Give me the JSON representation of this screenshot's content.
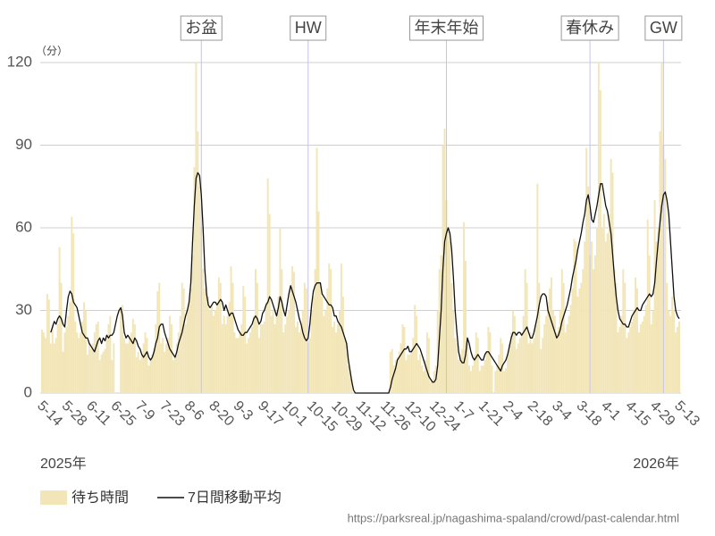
{
  "chart_data": {
    "type": "bar-line",
    "y_unit": "（分）",
    "year_labels": [
      "2025年",
      "2026年"
    ],
    "source": "https://parksreal.jp/nagashima-spaland/crowd/past-calendar.html",
    "annotations": [
      "お盆",
      "HW",
      "年末年始",
      "春休み",
      "GW"
    ],
    "ylim": [
      0,
      120
    ],
    "yticks": [
      0,
      30,
      60,
      90,
      120
    ],
    "grid": true,
    "categories": [
      "5-14",
      null,
      null,
      null,
      null,
      null,
      null,
      null,
      null,
      null,
      null,
      null,
      null,
      null,
      "5-28",
      null,
      null,
      null,
      null,
      null,
      null,
      null,
      null,
      null,
      null,
      null,
      null,
      null,
      "6-11",
      null,
      null,
      null,
      null,
      null,
      null,
      null,
      null,
      null,
      null,
      null,
      null,
      null,
      "6-25",
      null,
      null,
      null,
      null,
      null,
      null,
      null,
      null,
      null,
      null,
      null,
      null,
      null,
      "7-9",
      null,
      null,
      null,
      null,
      null,
      null,
      null,
      null,
      null,
      null,
      null,
      null,
      null,
      "7-23",
      null,
      null,
      null,
      null,
      null,
      null,
      null,
      null,
      null,
      null,
      null,
      null,
      null,
      "8-6",
      null,
      null,
      null,
      null,
      null,
      null,
      null,
      null,
      null,
      null,
      null,
      null,
      null,
      "8-20",
      null,
      null,
      null,
      null,
      null,
      null,
      null,
      null,
      null,
      null,
      null,
      null,
      null,
      "9-3",
      null,
      null,
      null,
      null,
      null,
      null,
      null,
      null,
      null,
      null,
      null,
      null,
      null,
      "9-17",
      null,
      null,
      null,
      null,
      null,
      null,
      null,
      null,
      null,
      null,
      null,
      null,
      null,
      "10-1",
      null,
      null,
      null,
      null,
      null,
      null,
      null,
      null,
      null,
      null,
      null,
      null,
      null,
      "10-15",
      null,
      null,
      null,
      null,
      null,
      null,
      null,
      null,
      null,
      null,
      null,
      null,
      null,
      "10-29",
      null,
      null,
      null,
      null,
      null,
      null,
      null,
      null,
      null,
      null,
      null,
      null,
      null,
      "11-12",
      null,
      null,
      null,
      null,
      null,
      null,
      null,
      null,
      null,
      null,
      null,
      null,
      null,
      "11-26",
      null,
      null,
      null,
      null,
      null,
      null,
      null,
      null,
      null,
      null,
      null,
      null,
      null,
      "12-10",
      null,
      null,
      null,
      null,
      null,
      null,
      null,
      null,
      null,
      null,
      null,
      null,
      null,
      "12-24",
      null,
      null,
      null,
      null,
      null,
      null,
      null,
      null,
      null,
      null,
      null,
      null,
      null,
      "1-7",
      null,
      null,
      null,
      null,
      null,
      null,
      null,
      null,
      null,
      null,
      null,
      null,
      null,
      "1-21",
      null,
      null,
      null,
      null,
      null,
      null,
      null,
      null,
      null,
      null,
      null,
      null,
      null,
      "2-4",
      null,
      null,
      null,
      null,
      null,
      null,
      null,
      null,
      null,
      null,
      null,
      null,
      null,
      "2-18",
      null,
      null,
      null,
      null,
      null,
      null,
      null,
      null,
      null,
      null,
      null,
      null,
      null,
      "3-4",
      null,
      null,
      null,
      null,
      null,
      null,
      null,
      null,
      null,
      null,
      null,
      null,
      null,
      "3-18",
      null,
      null,
      null,
      null,
      null,
      null,
      null,
      null,
      null,
      null,
      null,
      null,
      null,
      "4-1",
      null,
      null,
      null,
      null,
      null,
      null,
      null,
      null,
      null,
      null,
      null,
      null,
      null,
      "4-15",
      null,
      null,
      null,
      null,
      null,
      null,
      null,
      null,
      null,
      null,
      null,
      null,
      null,
      "4-29",
      null,
      null,
      null,
      null,
      null,
      null,
      null,
      null,
      null,
      null,
      null,
      null,
      null,
      "5-13"
    ],
    "series": [
      {
        "name": "待ち時間",
        "color": "#f2e6b8",
        "values": [
          23,
          22,
          20,
          36,
          34,
          18,
          25,
          18,
          20,
          25,
          53,
          40,
          15,
          22,
          24,
          28,
          33,
          64,
          58,
          26,
          22,
          20,
          22,
          26,
          33,
          30,
          14,
          18,
          16,
          18,
          22,
          25,
          26,
          12,
          14,
          15,
          16,
          20,
          25,
          28,
          12,
          18,
          0,
          0,
          0,
          30,
          32,
          20,
          18,
          18,
          20,
          22,
          27,
          25,
          13,
          15,
          12,
          14,
          18,
          22,
          20,
          10,
          12,
          14,
          16,
          25,
          37,
          40,
          18,
          20,
          15,
          18,
          20,
          28,
          25,
          12,
          14,
          18,
          22,
          28,
          40,
          38,
          25,
          30,
          33,
          38,
          50,
          82,
          120,
          95,
          75,
          60,
          45,
          38,
          40,
          35,
          30,
          32,
          28,
          30,
          33,
          42,
          40,
          25,
          28,
          25,
          28,
          33,
          46,
          40,
          22,
          20,
          20,
          22,
          25,
          39,
          35,
          18,
          20,
          22,
          24,
          28,
          45,
          40,
          20,
          25,
          25,
          26,
          33,
          78,
          65,
          28,
          30,
          25,
          28,
          35,
          60,
          45,
          22,
          25,
          28,
          30,
          38,
          46,
          44,
          24,
          26,
          22,
          24,
          30,
          40,
          38,
          18,
          20,
          30,
          35,
          45,
          89,
          66,
          40,
          35,
          28,
          30,
          38,
          47,
          45,
          24,
          26,
          22,
          25,
          30,
          47,
          35,
          20,
          18,
          10,
          8,
          5,
          0,
          0,
          0,
          0,
          0,
          0,
          0,
          0,
          0,
          0,
          0,
          0,
          0,
          0,
          0,
          0,
          0,
          0,
          0,
          0,
          0,
          15,
          16,
          10,
          12,
          13,
          15,
          18,
          25,
          24,
          12,
          14,
          14,
          16,
          20,
          32,
          28,
          12,
          14,
          10,
          8,
          12,
          22,
          20,
          4,
          5,
          8,
          10,
          30,
          45,
          50,
          90,
          96,
          70,
          60,
          55,
          40,
          30,
          20,
          18,
          12,
          14,
          16,
          62,
          48,
          20,
          10,
          8,
          10,
          14,
          22,
          20,
          8,
          10,
          10,
          12,
          15,
          24,
          22,
          10,
          0,
          8,
          10,
          14,
          20,
          18,
          8,
          9,
          14,
          18,
          22,
          30,
          28,
          16,
          18,
          20,
          22,
          28,
          45,
          40,
          18,
          22,
          18,
          20,
          25,
          76,
          40,
          16,
          20,
          25,
          28,
          33,
          38,
          42,
          30,
          28,
          22,
          24,
          30,
          45,
          40,
          22,
          25,
          28,
          32,
          38,
          56,
          55,
          35,
          38,
          40,
          45,
          55,
          89,
          75,
          50,
          55,
          45,
          50,
          60,
          120,
          110,
          60,
          65,
          55,
          58,
          65,
          85,
          80,
          45,
          40,
          22,
          24,
          28,
          45,
          40,
          20,
          22,
          24,
          26,
          30,
          42,
          38,
          22,
          25,
          26,
          28,
          32,
          63,
          50,
          25,
          30,
          70,
          55,
          60,
          95,
          120,
          90,
          85,
          40,
          30,
          28,
          35,
          30,
          22,
          24,
          26
        ]
      },
      {
        "name": "7日間移動平均",
        "color": "#111111",
        "values": [
          null,
          null,
          null,
          null,
          null,
          22,
          24,
          26,
          25,
          27,
          28,
          27,
          25,
          24,
          30,
          35,
          37,
          36,
          33,
          32,
          31,
          28,
          25,
          22,
          21,
          20,
          20,
          18,
          17,
          16,
          15,
          17,
          19,
          20,
          18,
          20,
          19,
          21,
          20,
          21,
          21,
          22,
          25,
          28,
          30,
          31,
          28,
          22,
          20,
          21,
          20,
          19,
          18,
          20,
          19,
          17,
          16,
          14,
          13,
          14,
          15,
          13,
          12,
          13,
          15,
          18,
          20,
          24,
          25,
          25,
          22,
          20,
          18,
          16,
          15,
          14,
          13,
          15,
          18,
          20,
          22,
          25,
          28,
          30,
          33,
          40,
          55,
          68,
          78,
          80,
          79,
          72,
          60,
          45,
          36,
          32,
          31,
          32,
          33,
          33,
          32,
          33,
          34,
          33,
          30,
          32,
          30,
          28,
          29,
          29,
          27,
          25,
          23,
          22,
          21,
          21,
          22,
          22,
          23,
          24,
          25,
          27,
          28,
          27,
          25,
          26,
          29,
          30,
          32,
          33,
          35,
          34,
          32,
          30,
          28,
          31,
          35,
          33,
          30,
          28,
          32,
          36,
          39,
          37,
          35,
          33,
          30,
          27,
          25,
          22,
          20,
          19,
          20,
          25,
          32,
          37,
          39,
          40,
          40,
          40,
          36,
          35,
          34,
          33,
          32,
          32,
          31,
          28,
          28,
          26,
          25,
          24,
          22,
          20,
          18,
          12,
          8,
          4,
          1,
          0,
          0,
          0,
          0,
          0,
          0,
          0,
          0,
          0,
          0,
          0,
          0,
          0,
          0,
          0,
          0,
          0,
          0,
          0,
          0,
          2,
          5,
          7,
          9,
          12,
          13,
          14,
          15,
          16,
          16,
          17,
          15,
          15,
          16,
          17,
          18,
          17,
          16,
          14,
          12,
          10,
          8,
          6,
          5,
          4,
          4,
          5,
          10,
          20,
          30,
          45,
          55,
          58,
          60,
          58,
          52,
          42,
          30,
          22,
          15,
          12,
          11,
          11,
          14,
          20,
          18,
          15,
          13,
          12,
          13,
          14,
          13,
          12,
          12,
          14,
          15,
          15,
          14,
          13,
          12,
          11,
          10,
          9,
          8,
          10,
          11,
          12,
          14,
          17,
          20,
          22,
          22,
          21,
          22,
          22,
          21,
          22,
          23,
          24,
          22,
          20,
          20,
          22,
          25,
          28,
          32,
          35,
          36,
          36,
          35,
          30,
          28,
          26,
          24,
          22,
          20,
          21,
          23,
          26,
          28,
          30,
          32,
          35,
          38,
          42,
          45,
          48,
          52,
          55,
          58,
          62,
          65,
          70,
          72,
          68,
          63,
          62,
          65,
          68,
          72,
          76,
          76,
          72,
          68,
          66,
          62,
          58,
          50,
          42,
          35,
          30,
          27,
          26,
          25,
          25,
          24,
          24,
          26,
          28,
          29,
          30,
          31,
          30,
          30,
          32,
          33,
          34,
          35,
          36,
          35,
          36,
          40,
          48,
          55,
          62,
          68,
          72,
          73,
          70,
          65,
          55,
          45,
          35,
          30,
          28,
          27
        ]
      }
    ]
  }
}
